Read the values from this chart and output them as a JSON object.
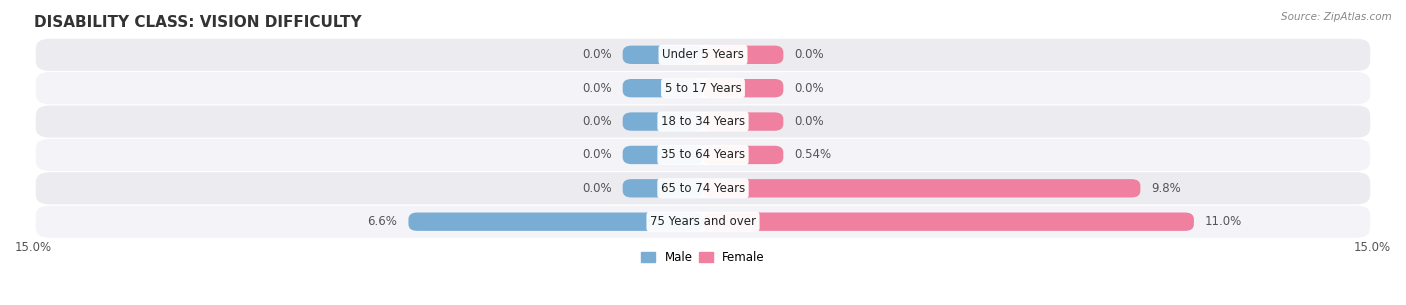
{
  "title": "DISABILITY CLASS: VISION DIFFICULTY",
  "source": "Source: ZipAtlas.com",
  "categories": [
    "Under 5 Years",
    "5 to 17 Years",
    "18 to 34 Years",
    "35 to 64 Years",
    "65 to 74 Years",
    "75 Years and over"
  ],
  "male_values": [
    0.0,
    0.0,
    0.0,
    0.0,
    0.0,
    6.6
  ],
  "female_values": [
    0.0,
    0.0,
    0.0,
    0.54,
    9.8,
    11.0
  ],
  "male_label_texts": [
    "0.0%",
    "0.0%",
    "0.0%",
    "0.0%",
    "0.0%",
    "6.6%"
  ],
  "female_label_texts": [
    "0.0%",
    "0.0%",
    "0.0%",
    "0.54%",
    "9.8%",
    "11.0%"
  ],
  "male_color": "#7aadd4",
  "female_color": "#f080a0",
  "row_colors": [
    "#ebebf0",
    "#f3f3f8",
    "#ebebf0",
    "#f3f3f8",
    "#ebebf0",
    "#f3f3f8"
  ],
  "axis_limit": 15.0,
  "min_bar_width": 1.8,
  "bar_height": 0.55,
  "title_fontsize": 11,
  "label_fontsize": 8.5,
  "tick_fontsize": 8.5,
  "category_fontsize": 8.5,
  "background_color": "#ffffff"
}
